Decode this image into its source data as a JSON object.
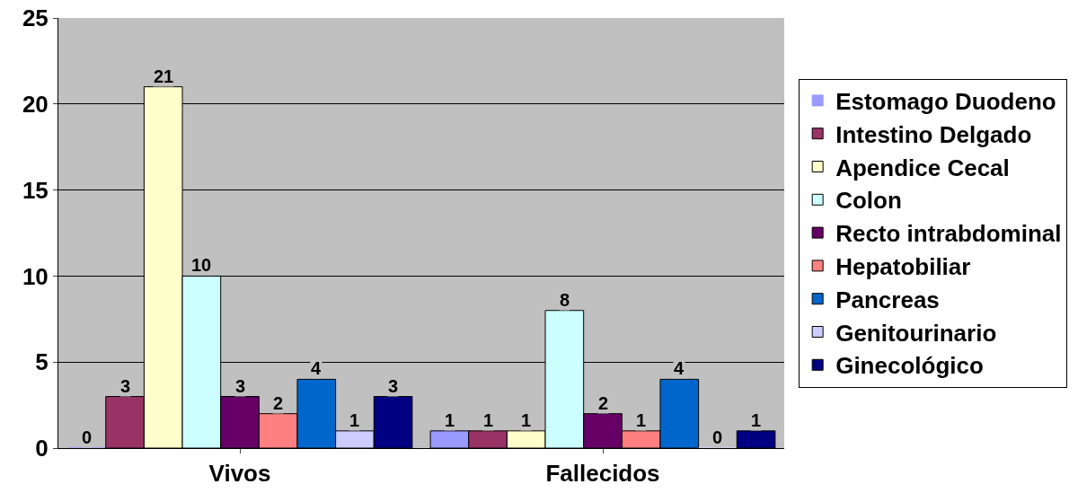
{
  "chart_data": {
    "type": "bar",
    "categories": [
      "Vivos",
      "Fallecidos"
    ],
    "series": [
      {
        "name": "Estomago Duodeno",
        "color": "#9999ff",
        "values": [
          0,
          1
        ]
      },
      {
        "name": "Intestino Delgado",
        "color": "#993366",
        "values": [
          3,
          1
        ]
      },
      {
        "name": "Apendice Cecal",
        "color": "#ffffcc",
        "values": [
          21,
          1
        ]
      },
      {
        "name": "Colon",
        "color": "#ccffff",
        "values": [
          10,
          8
        ]
      },
      {
        "name": "Recto intrabdominal",
        "color": "#660066",
        "values": [
          3,
          2
        ]
      },
      {
        "name": "Hepatobiliar",
        "color": "#ff8080",
        "values": [
          2,
          1
        ]
      },
      {
        "name": "Pancreas",
        "color": "#0066cc",
        "values": [
          4,
          4
        ]
      },
      {
        "name": "Genitourinario",
        "color": "#ccccff",
        "values": [
          1,
          0
        ]
      },
      {
        "name": "Ginecológico",
        "color": "#000080",
        "values": [
          3,
          1
        ]
      }
    ],
    "ylim": [
      0,
      25
    ],
    "yticks": [
      0,
      5,
      10,
      15,
      20,
      25
    ],
    "grid": "y",
    "legend": "right",
    "data_labels": true
  }
}
